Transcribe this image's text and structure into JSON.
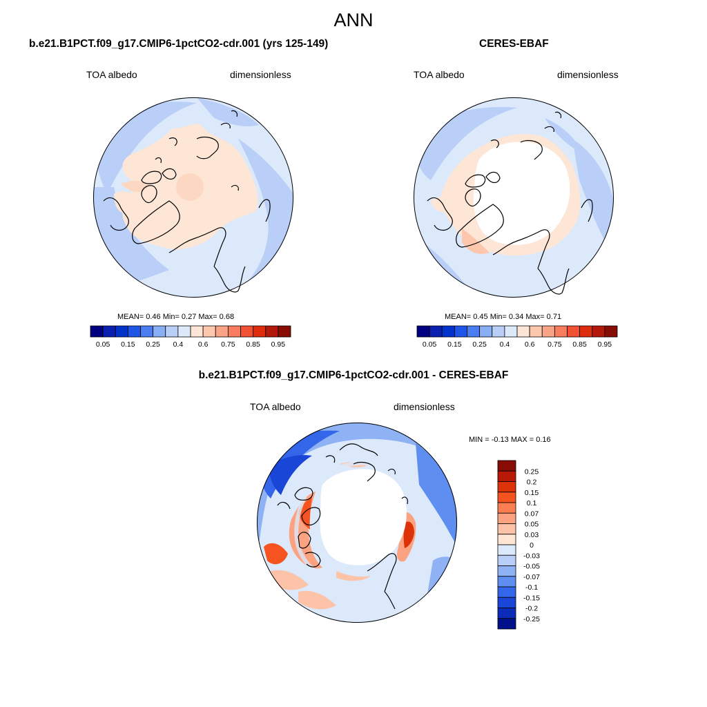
{
  "page_title": "ANN",
  "panels": [
    {
      "title": "b.e21.B1PCT.f09_g17.CMIP6-1pctCO2-cdr.001 (yrs 125-149)",
      "left_label": "TOA albedo",
      "right_label": "dimensionless",
      "stats": "MEAN=   0.46  Min=   0.27  Max=   0.68"
    },
    {
      "title": "CERES-EBAF",
      "left_label": "TOA albedo",
      "right_label": "dimensionless",
      "stats": "MEAN=   0.45  Min=   0.34  Max=   0.71"
    },
    {
      "title": "b.e21.B1PCT.f09_g17.CMIP6-1pctCO2-cdr.001 - CERES-EBAF",
      "left_label": "TOA albedo",
      "right_label": "dimensionless",
      "stats": "MIN =  -0.13 MAX =   0.16"
    }
  ],
  "colorbar_abs": {
    "colors": [
      "#000080",
      "#0a1fb0",
      "#0033cc",
      "#1f55e6",
      "#4a7df0",
      "#88aef5",
      "#b9cff8",
      "#dce9fb",
      "#fde6d6",
      "#fcc7ad",
      "#f9a487",
      "#f77d5e",
      "#f25032",
      "#de2d0d",
      "#b3180a",
      "#860c04"
    ],
    "ticks": [
      "0.05",
      "0.15",
      "0.25",
      "0.4",
      "0.6",
      "0.75",
      "0.85",
      "0.95"
    ]
  },
  "colorbar_diff": {
    "colors": [
      "#860c04",
      "#b81a06",
      "#dc3309",
      "#f5531f",
      "#fb7e52",
      "#fba280",
      "#fcc3a8",
      "#fde4d3",
      "#dce9fb",
      "#b9cff8",
      "#8fb2f4",
      "#5d8ef0",
      "#3366e8",
      "#1a46d8",
      "#0a2cb8",
      "#00108a"
    ],
    "ticks": [
      "0.25",
      "0.2",
      "0.15",
      "0.1",
      "0.07",
      "0.05",
      "0.03",
      "0",
      "-0.03",
      "-0.05",
      "-0.07",
      "-0.1",
      "-0.15",
      "-0.2",
      "-0.25"
    ]
  }
}
